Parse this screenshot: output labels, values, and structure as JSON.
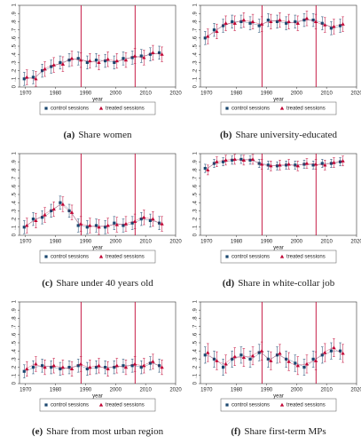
{
  "chart_data": [
    {
      "type": "scatter",
      "label": "(a)",
      "caption": "Share women",
      "xlabel": "year",
      "x": [
        1970,
        1973,
        1976,
        1979,
        1982,
        1985,
        1988,
        1991,
        1994,
        1997,
        2000,
        2003,
        2006,
        2009,
        2012,
        2015
      ],
      "xlim": [
        1968,
        2020
      ],
      "xticks": [
        1970,
        1980,
        1990,
        2000,
        2010,
        2020
      ],
      "ylim": [
        0,
        1
      ],
      "yticks": [
        0,
        {
          "value": 0.1,
          "label": ".1"
        },
        {
          "value": 0.2,
          "label": ".2"
        },
        {
          "value": 0.3,
          "label": ".3"
        },
        {
          "value": 0.4,
          "label": ".4"
        },
        {
          "value": 0.5,
          "label": ".5"
        },
        {
          "value": 0.6,
          "label": ".6"
        },
        {
          "value": 0.7,
          "label": ".7"
        },
        {
          "value": 0.8,
          "label": ".8"
        },
        {
          "value": 0.9,
          "label": ".9"
        },
        1
      ],
      "vlines": [
        1988.5,
        2006.5
      ],
      "series": [
        {
          "name": "control sessions",
          "color": "#1a476f",
          "marker": "square",
          "error": 0.08,
          "values": [
            0.1,
            0.12,
            0.2,
            0.25,
            0.3,
            0.33,
            0.35,
            0.3,
            0.33,
            0.32,
            0.3,
            0.35,
            0.36,
            0.38,
            0.4,
            0.42
          ]
        },
        {
          "name": "treated sessions",
          "color": "#c10534",
          "marker": "triangle",
          "error": 0.09,
          "values": [
            0.12,
            0.1,
            0.22,
            0.27,
            0.28,
            0.35,
            0.33,
            0.32,
            0.3,
            0.34,
            0.32,
            0.33,
            0.38,
            0.36,
            0.42,
            0.4
          ]
        }
      ]
    },
    {
      "type": "scatter",
      "label": "(b)",
      "caption": "Share university-educated",
      "xlabel": "year",
      "x": [
        1970,
        1973,
        1976,
        1979,
        1982,
        1985,
        1988,
        1991,
        1994,
        1997,
        2000,
        2003,
        2006,
        2009,
        2012,
        2015
      ],
      "xlim": [
        1968,
        2020
      ],
      "xticks": [
        1970,
        1980,
        1990,
        2000,
        2010,
        2020
      ],
      "ylim": [
        0,
        1
      ],
      "yticks": [
        0,
        {
          "value": 0.1,
          "label": ".1"
        },
        {
          "value": 0.2,
          "label": ".2"
        },
        {
          "value": 0.3,
          "label": ".3"
        },
        {
          "value": 0.4,
          "label": ".4"
        },
        {
          "value": 0.5,
          "label": ".5"
        },
        {
          "value": 0.6,
          "label": ".6"
        },
        {
          "value": 0.7,
          "label": ".7"
        },
        {
          "value": 0.8,
          "label": ".8"
        },
        {
          "value": 0.9,
          "label": ".9"
        },
        1
      ],
      "vlines": [
        1988.5,
        2006.5
      ],
      "series": [
        {
          "name": "control sessions",
          "color": "#1a476f",
          "marker": "square",
          "error": 0.08,
          "values": [
            0.6,
            0.7,
            0.75,
            0.8,
            0.8,
            0.78,
            0.75,
            0.82,
            0.8,
            0.78,
            0.8,
            0.82,
            0.82,
            0.78,
            0.72,
            0.75
          ]
        },
        {
          "name": "treated sessions",
          "color": "#c10534",
          "marker": "triangle",
          "error": 0.09,
          "values": [
            0.62,
            0.68,
            0.78,
            0.78,
            0.82,
            0.8,
            0.77,
            0.8,
            0.82,
            0.8,
            0.78,
            0.84,
            0.8,
            0.76,
            0.74,
            0.77
          ]
        }
      ]
    },
    {
      "type": "scatter",
      "label": "(c)",
      "caption": "Share under 40 years old",
      "xlabel": "year",
      "x": [
        1970,
        1973,
        1976,
        1979,
        1982,
        1985,
        1988,
        1991,
        1994,
        1997,
        2000,
        2003,
        2006,
        2009,
        2012,
        2015
      ],
      "xlim": [
        1968,
        2020
      ],
      "xticks": [
        1970,
        1980,
        1990,
        2000,
        2010,
        2020
      ],
      "ylim": [
        0,
        1
      ],
      "yticks": [
        0,
        {
          "value": 0.1,
          "label": ".1"
        },
        {
          "value": 0.2,
          "label": ".2"
        },
        {
          "value": 0.3,
          "label": ".3"
        },
        {
          "value": 0.4,
          "label": ".4"
        },
        {
          "value": 0.5,
          "label": ".5"
        },
        {
          "value": 0.6,
          "label": ".6"
        },
        {
          "value": 0.7,
          "label": ".7"
        },
        {
          "value": 0.8,
          "label": ".8"
        },
        {
          "value": 0.9,
          "label": ".9"
        },
        1
      ],
      "vlines": [
        1988.5,
        2006.5
      ],
      "series": [
        {
          "name": "control sessions",
          "color": "#1a476f",
          "marker": "square",
          "error": 0.08,
          "values": [
            0.1,
            0.2,
            0.22,
            0.3,
            0.4,
            0.3,
            0.12,
            0.1,
            0.12,
            0.1,
            0.15,
            0.12,
            0.15,
            0.2,
            0.18,
            0.15
          ]
        },
        {
          "name": "treated sessions",
          "color": "#c10534",
          "marker": "triangle",
          "error": 0.09,
          "values": [
            0.12,
            0.18,
            0.25,
            0.32,
            0.38,
            0.28,
            0.14,
            0.12,
            0.1,
            0.12,
            0.13,
            0.14,
            0.17,
            0.22,
            0.2,
            0.14
          ]
        }
      ]
    },
    {
      "type": "scatter",
      "label": "(d)",
      "caption": "Share in white-collar job",
      "xlabel": "year",
      "x": [
        1970,
        1973,
        1976,
        1979,
        1982,
        1985,
        1988,
        1991,
        1994,
        1997,
        2000,
        2003,
        2006,
        2009,
        2012,
        2015
      ],
      "xlim": [
        1968,
        2020
      ],
      "xticks": [
        1970,
        1980,
        1990,
        2000,
        2010,
        2020
      ],
      "ylim": [
        0,
        1
      ],
      "yticks": [
        0,
        {
          "value": 0.1,
          "label": ".1"
        },
        {
          "value": 0.2,
          "label": ".2"
        },
        {
          "value": 0.3,
          "label": ".3"
        },
        {
          "value": 0.4,
          "label": ".4"
        },
        {
          "value": 0.5,
          "label": ".5"
        },
        {
          "value": 0.6,
          "label": ".6"
        },
        {
          "value": 0.7,
          "label": ".7"
        },
        {
          "value": 0.8,
          "label": ".8"
        },
        {
          "value": 0.9,
          "label": ".9"
        },
        1
      ],
      "vlines": [
        1988.5,
        2006.5
      ],
      "series": [
        {
          "name": "control sessions",
          "color": "#1a476f",
          "marker": "square",
          "error": 0.05,
          "values": [
            0.82,
            0.88,
            0.9,
            0.92,
            0.93,
            0.92,
            0.88,
            0.86,
            0.85,
            0.86,
            0.86,
            0.87,
            0.86,
            0.88,
            0.88,
            0.9
          ]
        },
        {
          "name": "treated sessions",
          "color": "#c10534",
          "marker": "triangle",
          "error": 0.06,
          "values": [
            0.8,
            0.9,
            0.92,
            0.93,
            0.92,
            0.93,
            0.87,
            0.85,
            0.86,
            0.87,
            0.85,
            0.88,
            0.87,
            0.86,
            0.89,
            0.91
          ]
        }
      ]
    },
    {
      "type": "scatter",
      "label": "(e)",
      "caption": "Share from most urban region",
      "xlabel": "year",
      "x": [
        1970,
        1973,
        1976,
        1979,
        1982,
        1985,
        1988,
        1991,
        1994,
        1997,
        2000,
        2003,
        2006,
        2009,
        2012,
        2015
      ],
      "xlim": [
        1968,
        2020
      ],
      "xticks": [
        1970,
        1980,
        1990,
        2000,
        2010,
        2020
      ],
      "ylim": [
        0,
        1
      ],
      "yticks": [
        0,
        {
          "value": 0.1,
          "label": ".1"
        },
        {
          "value": 0.2,
          "label": ".2"
        },
        {
          "value": 0.3,
          "label": ".3"
        },
        {
          "value": 0.4,
          "label": ".4"
        },
        {
          "value": 0.5,
          "label": ".5"
        },
        {
          "value": 0.6,
          "label": ".6"
        },
        {
          "value": 0.7,
          "label": ".7"
        },
        {
          "value": 0.8,
          "label": ".8"
        },
        {
          "value": 0.9,
          "label": ".9"
        },
        1
      ],
      "vlines": [
        1988.5,
        2006.5
      ],
      "series": [
        {
          "name": "control sessions",
          "color": "#1a476f",
          "marker": "square",
          "error": 0.08,
          "values": [
            0.15,
            0.2,
            0.22,
            0.2,
            0.18,
            0.2,
            0.22,
            0.18,
            0.2,
            0.2,
            0.2,
            0.22,
            0.22,
            0.2,
            0.25,
            0.22
          ]
        },
        {
          "name": "treated sessions",
          "color": "#c10534",
          "marker": "triangle",
          "error": 0.09,
          "values": [
            0.18,
            0.24,
            0.2,
            0.22,
            0.2,
            0.18,
            0.24,
            0.2,
            0.22,
            0.18,
            0.22,
            0.2,
            0.24,
            0.22,
            0.27,
            0.2
          ]
        }
      ]
    },
    {
      "type": "scatter",
      "label": "(f)",
      "caption": "Share first-term MPs",
      "xlabel": "year",
      "x": [
        1970,
        1973,
        1976,
        1979,
        1982,
        1985,
        1988,
        1991,
        1994,
        1997,
        2000,
        2003,
        2006,
        2009,
        2012,
        2015
      ],
      "xlim": [
        1968,
        2020
      ],
      "xticks": [
        1970,
        1980,
        1990,
        2000,
        2010,
        2020
      ],
      "ylim": [
        0,
        1
      ],
      "yticks": [
        0,
        {
          "value": 0.1,
          "label": ".1"
        },
        {
          "value": 0.2,
          "label": ".2"
        },
        {
          "value": 0.3,
          "label": ".3"
        },
        {
          "value": 0.4,
          "label": ".4"
        },
        {
          "value": 0.5,
          "label": ".5"
        },
        {
          "value": 0.6,
          "label": ".6"
        },
        {
          "value": 0.7,
          "label": ".7"
        },
        {
          "value": 0.8,
          "label": ".8"
        },
        {
          "value": 0.9,
          "label": ".9"
        },
        1
      ],
      "vlines": [
        1988.5,
        2006.5
      ],
      "series": [
        {
          "name": "control sessions",
          "color": "#1a476f",
          "marker": "square",
          "error": 0.1,
          "values": [
            0.35,
            0.3,
            0.2,
            0.3,
            0.35,
            0.3,
            0.38,
            0.3,
            0.35,
            0.3,
            0.25,
            0.2,
            0.3,
            0.35,
            0.4,
            0.4
          ]
        },
        {
          "name": "treated sessions",
          "color": "#c10534",
          "marker": "triangle",
          "error": 0.11,
          "values": [
            0.38,
            0.28,
            0.24,
            0.33,
            0.32,
            0.34,
            0.4,
            0.28,
            0.37,
            0.27,
            0.22,
            0.24,
            0.28,
            0.38,
            0.44,
            0.37
          ]
        }
      ]
    }
  ]
}
